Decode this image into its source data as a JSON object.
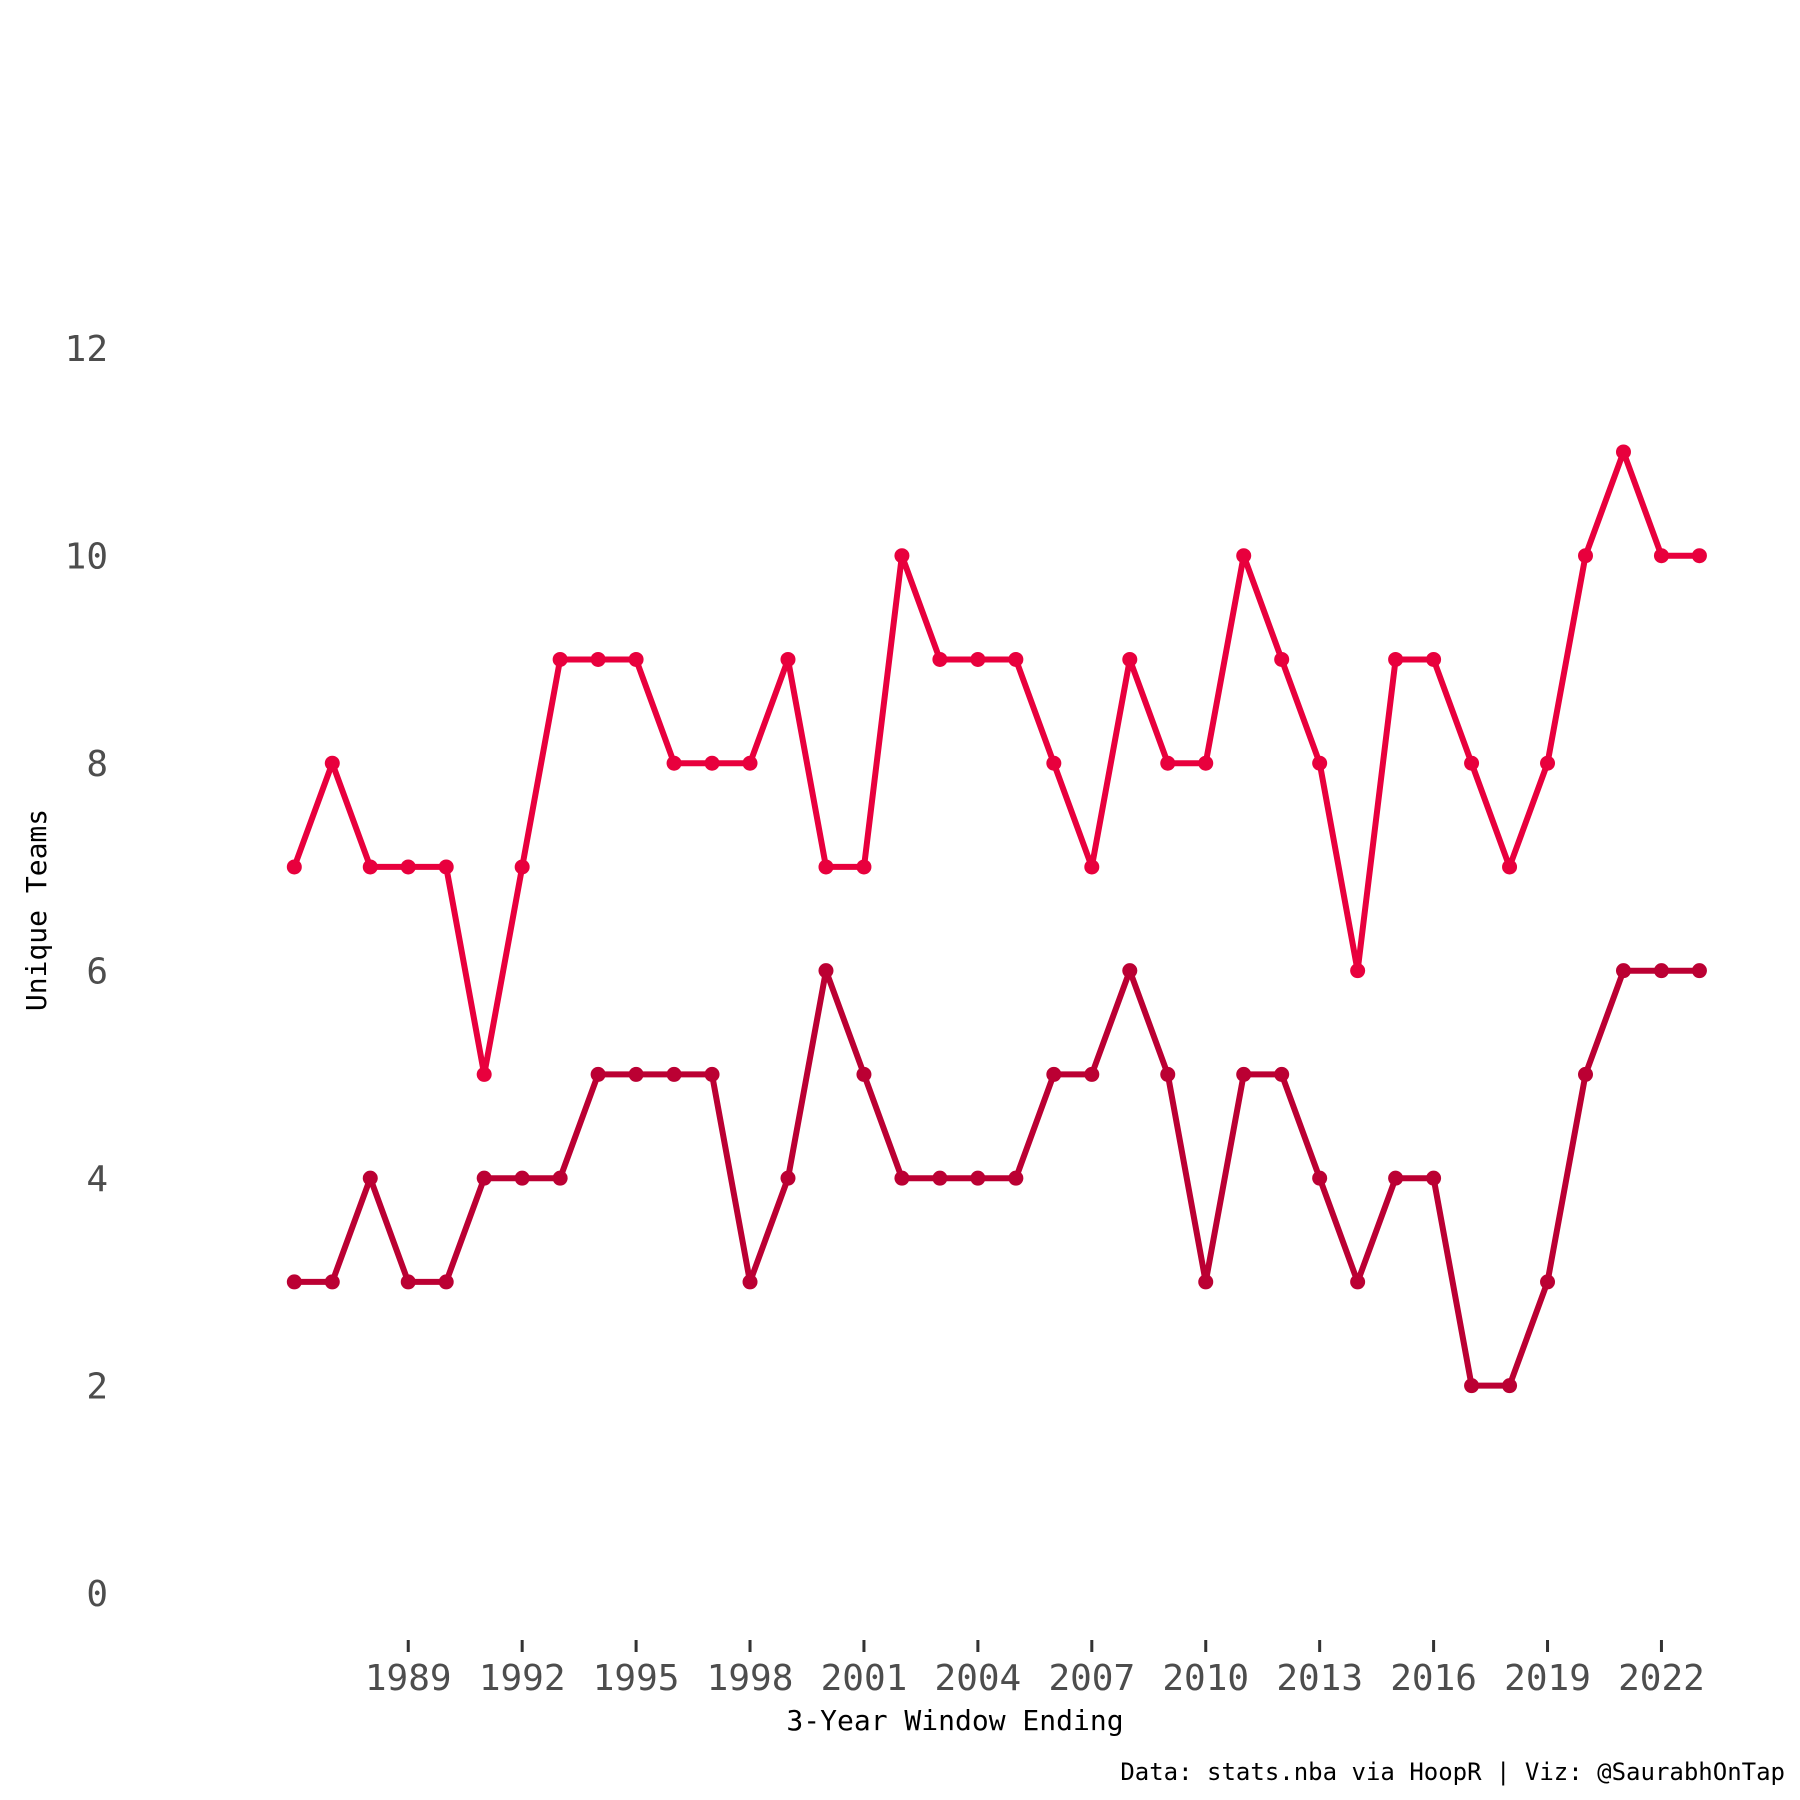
{
  "chart_data": {
    "type": "line",
    "title": "",
    "xlabel": "3-Year Window Ending",
    "ylabel": "Unique Teams",
    "caption": "Data: stats.nba via HoopR | Viz: @SaurabhOnTap",
    "x": [
      1986,
      1987,
      1988,
      1989,
      1990,
      1991,
      1992,
      1993,
      1994,
      1995,
      1996,
      1997,
      1998,
      1999,
      2000,
      2001,
      2002,
      2003,
      2004,
      2005,
      2006,
      2007,
      2008,
      2009,
      2010,
      2011,
      2012,
      2013,
      2014,
      2015,
      2016,
      2017,
      2018,
      2019,
      2020,
      2021,
      2022,
      2023
    ],
    "xticks": [
      1989,
      1992,
      1995,
      1998,
      2001,
      2004,
      2007,
      2010,
      2013,
      2016,
      2019,
      2022
    ],
    "yticks": [
      0,
      2,
      4,
      6,
      8,
      10,
      12
    ],
    "xlim": [
      1982.2,
      2024.2
    ],
    "ylim": [
      -0.5,
      14.2
    ],
    "grid": false,
    "legend": "none",
    "series": [
      {
        "color": "#e8003d",
        "values": [
          7,
          8,
          7,
          7,
          7,
          5,
          7,
          9,
          9,
          9,
          8,
          8,
          8,
          9,
          7,
          7,
          10,
          9,
          9,
          9,
          8,
          7,
          9,
          8,
          8,
          10,
          9,
          8,
          6,
          9,
          9,
          8,
          7,
          8,
          10,
          11,
          10,
          10
        ]
      },
      {
        "color": "#bb0033",
        "values": [
          3,
          3,
          4,
          3,
          3,
          4,
          4,
          4,
          5,
          5,
          5,
          5,
          3,
          4,
          6,
          5,
          4,
          4,
          4,
          4,
          5,
          5,
          6,
          5,
          3,
          5,
          5,
          4,
          3,
          4,
          4,
          2,
          2,
          3,
          5,
          6,
          6,
          6
        ]
      }
    ]
  }
}
